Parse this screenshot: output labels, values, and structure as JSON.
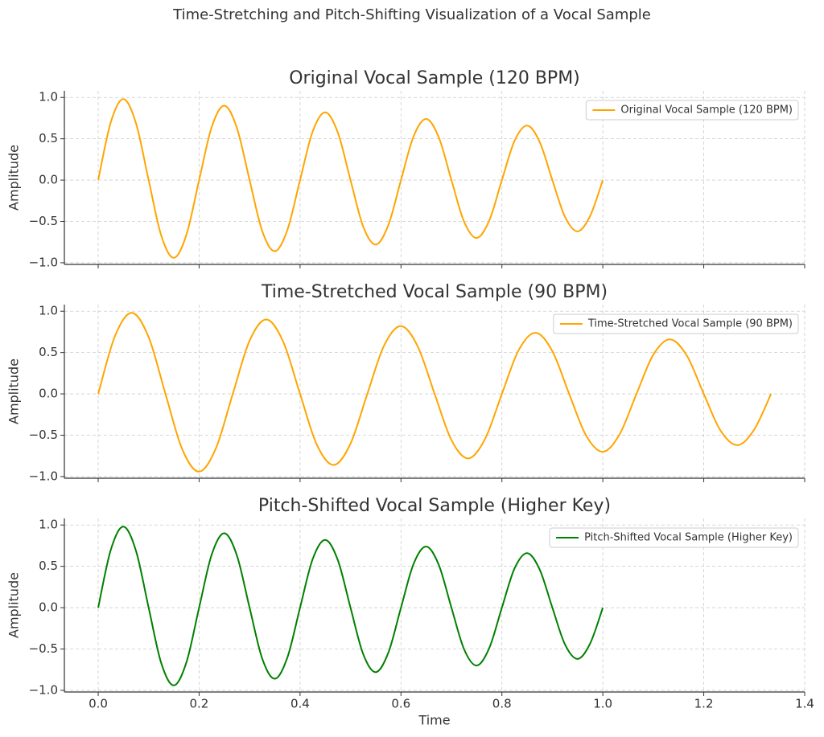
{
  "title": "Time-Stretching and Pitch-Shifting Visualization of a Vocal Sample",
  "chart_data": [
    {
      "type": "line",
      "title": "Original Vocal Sample (120 BPM)",
      "y_label": "Amplitude",
      "xlim": [
        -0.067,
        1.4
      ],
      "ylim": [
        -1.02,
        1.08
      ],
      "xticks": [
        {
          "value": 0,
          "label": "0.0"
        },
        0.2,
        0.4,
        0.6,
        0.8,
        {
          "value": 1,
          "label": "1.0"
        },
        1.2,
        1.4
      ],
      "yticks": [
        {
          "value": -1,
          "label": "−1.0"
        },
        {
          "value": -0.5,
          "label": "−0.5"
        },
        {
          "value": 0,
          "label": "0.0"
        },
        0.5,
        {
          "value": 1,
          "label": "1.0"
        }
      ],
      "grid": true,
      "legend": "upper right",
      "x": [
        0,
        0.025,
        0.05,
        0.075,
        0.1,
        0.125,
        0.15,
        0.175,
        0.2,
        0.225,
        0.25,
        0.275,
        0.3,
        0.325,
        0.35,
        0.375,
        0.4,
        0.425,
        0.45,
        0.475,
        0.5,
        0.525,
        0.55,
        0.575,
        0.6,
        0.625,
        0.65,
        0.675,
        0.7,
        0.725,
        0.75,
        0.775,
        0.8,
        0.825,
        0.85,
        0.875,
        0.9,
        0.925,
        0.95,
        0.975,
        1.0
      ],
      "series": [
        {
          "name": "Original Vocal Sample (120 BPM)",
          "color": "#FFA500",
          "values": [
            0,
            0.7,
            0.98,
            0.686,
            0,
            -0.672,
            -0.94,
            -0.658,
            0,
            0.643,
            0.9,
            0.629,
            0,
            -0.615,
            -0.86,
            -0.601,
            0,
            0.587,
            0.82,
            0.573,
            0,
            -0.559,
            -0.78,
            -0.544,
            0,
            0.53,
            0.74,
            0.516,
            0,
            -0.502,
            -0.7,
            -0.488,
            0,
            0.474,
            0.66,
            0.46,
            0,
            -0.445,
            -0.62,
            -0.431,
            0
          ]
        }
      ]
    },
    {
      "type": "line",
      "title": "Time-Stretched Vocal Sample (90 BPM)",
      "y_label": "Amplitude",
      "xlim": [
        -0.067,
        1.4
      ],
      "ylim": [
        -1.02,
        1.08
      ],
      "xticks": [
        {
          "value": 0,
          "label": "0.0"
        },
        0.2,
        0.4,
        0.6,
        0.8,
        {
          "value": 1,
          "label": "1.0"
        },
        1.2,
        1.4
      ],
      "yticks": [
        {
          "value": -1,
          "label": "−1.0"
        },
        {
          "value": -0.5,
          "label": "−0.5"
        },
        {
          "value": 0,
          "label": "0.0"
        },
        0.5,
        {
          "value": 1,
          "label": "1.0"
        }
      ],
      "grid": true,
      "legend": "upper right",
      "x": [
        0,
        0.0333,
        0.0667,
        0.1,
        0.1333,
        0.1667,
        0.2,
        0.2333,
        0.2667,
        0.3,
        0.3333,
        0.3667,
        0.4,
        0.4333,
        0.4667,
        0.5,
        0.5333,
        0.5667,
        0.6,
        0.6333,
        0.6667,
        0.7,
        0.7333,
        0.7667,
        0.8,
        0.8333,
        0.8667,
        0.9,
        0.9333,
        0.9667,
        1.0,
        1.0333,
        1.0667,
        1.1,
        1.1333,
        1.1667,
        1.2,
        1.2333,
        1.2667,
        1.3,
        1.3333
      ],
      "series": [
        {
          "name": "Time-Stretched Vocal Sample (90 BPM)",
          "color": "#FFA500",
          "values": [
            0,
            0.7,
            0.98,
            0.686,
            0,
            -0.672,
            -0.94,
            -0.658,
            0,
            0.643,
            0.9,
            0.629,
            0,
            -0.615,
            -0.86,
            -0.601,
            0,
            0.587,
            0.82,
            0.573,
            0,
            -0.559,
            -0.78,
            -0.544,
            0,
            0.53,
            0.74,
            0.516,
            0,
            -0.502,
            -0.7,
            -0.488,
            0,
            0.474,
            0.66,
            0.46,
            0,
            -0.445,
            -0.62,
            -0.431,
            0
          ]
        }
      ]
    },
    {
      "type": "line",
      "title": "Pitch-Shifted Vocal Sample (Higher Key)",
      "y_label": "Amplitude",
      "x_label": "Time",
      "xlim": [
        -0.067,
        1.4
      ],
      "ylim": [
        -1.02,
        1.08
      ],
      "xticks": [
        {
          "value": 0,
          "label": "0.0"
        },
        0.2,
        0.4,
        0.6,
        0.8,
        {
          "value": 1,
          "label": "1.0"
        },
        1.2,
        1.4
      ],
      "yticks": [
        {
          "value": -1,
          "label": "−1.0"
        },
        {
          "value": -0.5,
          "label": "−0.5"
        },
        {
          "value": 0,
          "label": "0.0"
        },
        0.5,
        {
          "value": 1,
          "label": "1.0"
        }
      ],
      "grid": true,
      "legend": "upper right",
      "x": [
        0,
        0.025,
        0.05,
        0.075,
        0.1,
        0.125,
        0.15,
        0.175,
        0.2,
        0.225,
        0.25,
        0.275,
        0.3,
        0.325,
        0.35,
        0.375,
        0.4,
        0.425,
        0.45,
        0.475,
        0.5,
        0.525,
        0.55,
        0.575,
        0.6,
        0.625,
        0.65,
        0.675,
        0.7,
        0.725,
        0.75,
        0.775,
        0.8,
        0.825,
        0.85,
        0.875,
        0.9,
        0.925,
        0.95,
        0.975,
        1.0
      ],
      "series": [
        {
          "name": "Pitch-Shifted Vocal Sample (Higher Key)",
          "color": "#008000",
          "values": [
            0,
            0.7,
            0.98,
            0.686,
            0,
            -0.672,
            -0.94,
            -0.658,
            0,
            0.643,
            0.9,
            0.629,
            0,
            -0.615,
            -0.86,
            -0.601,
            0,
            0.587,
            0.82,
            0.573,
            0,
            -0.559,
            -0.78,
            -0.544,
            0,
            0.53,
            0.74,
            0.516,
            0,
            -0.502,
            -0.7,
            -0.488,
            0,
            0.474,
            0.66,
            0.46,
            0,
            -0.445,
            -0.62,
            -0.431,
            0
          ]
        }
      ]
    }
  ]
}
